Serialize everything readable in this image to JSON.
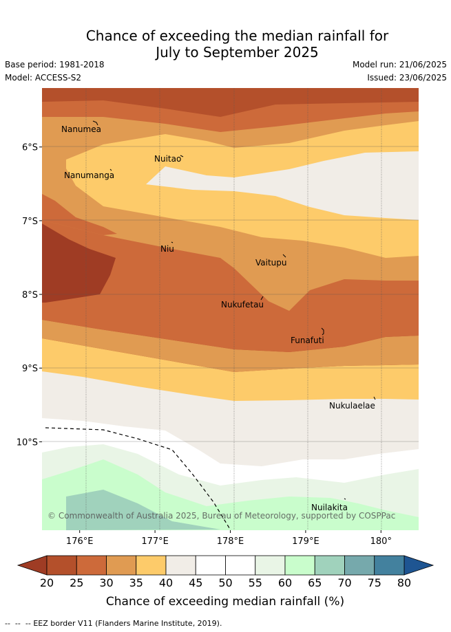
{
  "header": {
    "title_line1": "Chance of exceeding the median rainfall for",
    "title_line2": "July to September 2025",
    "base_period": "Base period: 1981-2018",
    "model": "Model: ACCESS-S2",
    "model_run": "Model run: 21/06/2025",
    "issued": "Issued: 23/06/2025"
  },
  "map": {
    "copyright": "© Commonwealth of Australia 2025, Bureau of Meteorology, supported by COSPPac",
    "islands": [
      {
        "name": "Nanumea"
      },
      {
        "name": "Nuitao"
      },
      {
        "name": "Nanumanga"
      },
      {
        "name": "Niu"
      },
      {
        "name": "Vaitupu"
      },
      {
        "name": "Nukufetau"
      },
      {
        "name": "Funafuti"
      },
      {
        "name": "Nukulaelae"
      },
      {
        "name": "Nuilakita"
      }
    ]
  },
  "chart_data": {
    "type": "heatmap",
    "title": "Chance of exceeding the median rainfall for July to September 2025",
    "x_axis": {
      "range": [
        175.5,
        180.5
      ],
      "ticks": [
        176,
        177,
        178,
        179,
        180
      ],
      "tick_labels": [
        "176°E",
        "177°E",
        "178°E",
        "179°E",
        "180°"
      ]
    },
    "y_axis": {
      "range": [
        -11.2,
        -5.2
      ],
      "ticks": [
        -6,
        -7,
        -8,
        -9,
        -10
      ],
      "tick_labels": [
        "6°S",
        "7°S",
        "8°S",
        "9°S",
        "10°S"
      ]
    },
    "grid": true,
    "colorbar": {
      "label": "Chance of exceeding median rainfall (%)",
      "levels": [
        20,
        25,
        30,
        35,
        40,
        45,
        50,
        55,
        60,
        65,
        70,
        75,
        80
      ],
      "level_labels": [
        "20",
        "25",
        "30",
        "35",
        "40",
        "45",
        "50",
        "55",
        "60",
        "65",
        "70",
        "75",
        "80"
      ],
      "colors": [
        "#b4502b",
        "#cd6a3a",
        "#e09b52",
        "#fdcb6a",
        "#f1ede7",
        "#ffffff",
        "#ffffff",
        "#e9f5e6",
        "#c9fdcc",
        "#a0d2bc",
        "#76a9ac",
        "#43819e"
      ],
      "under_color": "#9f3c24",
      "over_color": "#1e5592"
    },
    "legend_note": "EEZ border V11 (Flanders Marine Institute, 2019)."
  }
}
